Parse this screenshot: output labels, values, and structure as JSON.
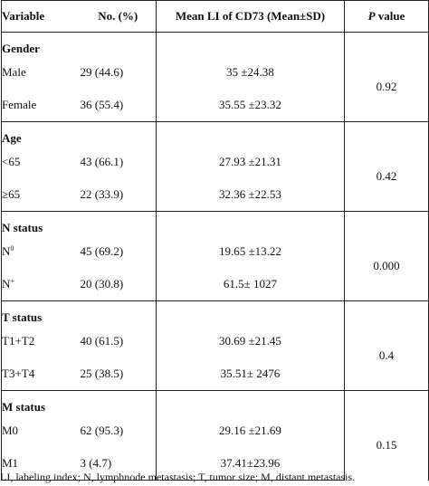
{
  "header": {
    "variable": "Variable",
    "no": "No. (%)",
    "mean": "Mean LI of CD73 (Mean±SD)",
    "p_italic": "P",
    "p_rest": " value"
  },
  "groups": [
    {
      "title": "Gender",
      "p": "0.92",
      "rows": [
        {
          "label": "Male",
          "sup": "",
          "no": "29 (44.6)",
          "mean": "35 ±24.38"
        },
        {
          "label": "Female",
          "sup": "",
          "no": "36 (55.4)",
          "mean": "35.55 ±23.32"
        }
      ]
    },
    {
      "title": "Age",
      "p": "0.42",
      "rows": [
        {
          "label": "<65",
          "sup": "",
          "no": "43 (66.1)",
          "mean": "27.93 ±21.31"
        },
        {
          "label": "≥65",
          "sup": "",
          "no": "22 (33.9)",
          "mean": "32.36 ±22.53"
        }
      ]
    },
    {
      "title": "N status",
      "p": "0.000",
      "rows": [
        {
          "label": "N",
          "sup": "0",
          "no": "45 (69.2)",
          "mean": "19.65 ±13.22"
        },
        {
          "label": "N",
          "sup": "+",
          "no": "20 (30.8)",
          "mean": "61.5± 1027"
        }
      ]
    },
    {
      "title": "T status",
      "p": "0.4",
      "rows": [
        {
          "label": "T1+T2",
          "sup": "",
          "no": "40 (61.5)",
          "mean": "30.69 ±21.45"
        },
        {
          "label": "T3+T4",
          "sup": "",
          "no": "25 (38.5)",
          "mean": "35.51± 2476"
        }
      ]
    },
    {
      "title": "M status",
      "p": "0.15",
      "rows": [
        {
          "label": "M0",
          "sup": "",
          "no": "62 (95.3)",
          "mean": "29.16 ±21.69"
        },
        {
          "label": "M1",
          "sup": "",
          "no": "3 (4.7)",
          "mean": "37.41±23.96"
        }
      ]
    }
  ],
  "footnote": "LI, labeling index; N, lymphnode metastasis; T, tumor size; M, distant metastasis."
}
